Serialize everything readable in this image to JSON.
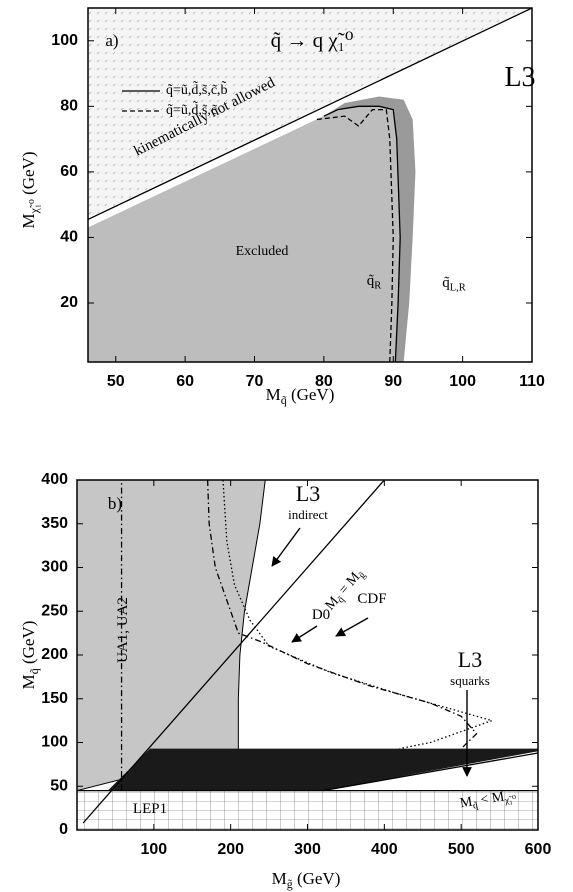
{
  "chart_data": [
    {
      "type": "exclusion",
      "label": [
        "a)"
      ],
      "title": [
        "q̃ → q χ̃₁⁰"
      ],
      "experiment": [
        "L3"
      ],
      "xlim": [
        46,
        110
      ],
      "ylim": [
        2,
        110
      ],
      "xticks": [
        50,
        60,
        70,
        80,
        90,
        100,
        110
      ],
      "yticks": [
        20,
        40,
        60,
        80,
        100
      ],
      "x_label": [
        "M",
        "q̃",
        " (GeV)"
      ],
      "y_label": [
        "M",
        "χ̃₁⁰",
        " (GeV)"
      ],
      "legend": "upper left",
      "regions": [
        {
          "fill": "#f4f4f4",
          "pattern": "dots",
          "x": [
            46,
            46,
            110
          ],
          "values": [
            46,
            110,
            110
          ]
        },
        {
          "fill": "#9a9a9a",
          "x": [
            46,
            80,
            83,
            88,
            91.5,
            92.8,
            93.2,
            92.8,
            92.3,
            91.5,
            46
          ],
          "values": [
            43,
            77,
            81,
            83,
            82,
            76,
            60,
            40,
            20,
            2,
            2
          ]
        },
        {
          "fill": "#bdbdbd",
          "x": [
            46,
            80,
            82,
            85,
            88,
            90,
            90.5,
            91,
            90.7,
            90.3,
            46
          ],
          "values": [
            43,
            77,
            79,
            80,
            80,
            79,
            70,
            40,
            20,
            2,
            2
          ]
        }
      ],
      "lines": [
        {
          "style": "solid",
          "x": [
            46,
            110
          ],
          "values": [
            45.5,
            110
          ]
        }
      ],
      "series": [
        {
          "name": [
            "q̃=ũ,d̃,s̃,c̃,b̃"
          ],
          "color": "#000",
          "style": "solid",
          "x": [
            80,
            82,
            85,
            88,
            90,
            90.5,
            91,
            90.7,
            90.3
          ],
          "values": [
            77,
            79,
            80,
            80,
            79,
            70,
            40,
            20,
            2
          ]
        },
        {
          "name": [
            "q̃=ũ,d̃,s̃,c̃"
          ],
          "color": "#000",
          "style": "dashed",
          "x": [
            79,
            83,
            85,
            87,
            89,
            89.5,
            90,
            89.8,
            89.5
          ],
          "values": [
            76,
            77,
            74,
            79,
            79,
            70,
            40,
            20,
            2
          ]
        }
      ],
      "annotations": [
        [
          "kinematically not allowed"
        ],
        [
          "Excluded"
        ],
        [
          "q̃",
          "R"
        ],
        [
          "q̃",
          "L,R"
        ]
      ]
    },
    {
      "type": "exclusion",
      "label": [
        "b)"
      ],
      "xlim": [
        0,
        600
      ],
      "ylim": [
        0,
        400
      ],
      "xticks": [
        100,
        200,
        300,
        400,
        500,
        600
      ],
      "yticks": [
        0,
        50,
        100,
        150,
        200,
        250,
        300,
        350,
        400
      ],
      "x_label": [
        "M",
        "g̃",
        " (GeV)"
      ],
      "y_label": [
        "M",
        "q̃",
        " (GeV)"
      ],
      "regions": [
        {
          "fill": "#ffffff",
          "pattern": "grid",
          "x": [
            0,
            600,
            600,
            0
          ],
          "values": [
            0,
            0,
            45,
            45
          ]
        },
        {
          "fill": "#c6c6c6",
          "stroke": "#000",
          "x": [
            0,
            0,
            245,
            238,
            228,
            218,
            212,
            210,
            210,
            0
          ],
          "values": [
            45,
            400,
            400,
            350,
            300,
            250,
            200,
            150,
            92,
            45
          ]
        },
        {
          "fill": "#1a1a1a",
          "x": [
            95,
            600,
            600,
            320,
            40
          ],
          "values": [
            93,
            93,
            90,
            45,
            45
          ]
        }
      ],
      "lines": [
        {
          "style": "solid",
          "x": [
            8,
            400
          ],
          "values": [
            8,
            400
          ]
        },
        {
          "style": "dashdot",
          "x": [
            58,
            58
          ],
          "values": [
            45,
            400
          ]
        },
        {
          "style": "solid",
          "x": [
            320,
            600
          ],
          "values": [
            45,
            88
          ]
        },
        {
          "style": "solid",
          "x": [
            0,
            600
          ],
          "values": [
            45,
            45
          ]
        }
      ],
      "series": [
        {
          "name": [
            "D0"
          ],
          "color": "#000",
          "style": "dashdot",
          "x": [
            170,
            172,
            180,
            200,
            210,
            240,
            300,
            380,
            460,
            500,
            520,
            500
          ],
          "values": [
            400,
            350,
            300,
            250,
            225,
            215,
            190,
            165,
            145,
            130,
            110,
            93
          ]
        },
        {
          "name": [
            "CDF"
          ],
          "color": "#000",
          "style": "dotted",
          "x": [
            190,
            195,
            205,
            225,
            250,
            330,
            420,
            500,
            540,
            460,
            420
          ],
          "values": [
            400,
            330,
            280,
            240,
            210,
            180,
            155,
            135,
            125,
            100,
            93
          ]
        }
      ],
      "annotations": [
        [
          "L3"
        ],
        [
          "indirect"
        ],
        [
          "L3"
        ],
        [
          "squarks"
        ],
        [
          "UA1, UA2"
        ],
        [
          "LEP1"
        ],
        [
          "M",
          "q̃",
          " = M",
          "g̃"
        ],
        [
          "M",
          "q̃",
          " < M",
          "χ̃₁⁰"
        ]
      ]
    }
  ]
}
